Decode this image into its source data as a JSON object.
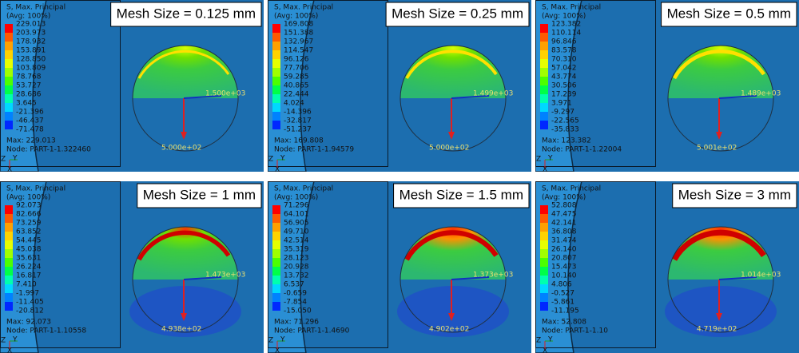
{
  "panels": [
    {
      "mesh_size": "Mesh Size = 0.125 mm",
      "legend_title": "S, Max. Principal",
      "legend_avg": "(Avg: 100%)",
      "legend_values": [
        "229.013",
        "203.973",
        "178.932",
        "153.891",
        "128.850",
        "103.809",
        "78.768",
        "53.727",
        "28.686",
        "3.645",
        "-21.396",
        "-46.437",
        "-71.478"
      ],
      "max": "Max: 229.013",
      "node": "Node: PART-1-1.322460",
      "right_load": "1.500e+03",
      "bottom_load": "5.000e+02"
    },
    {
      "mesh_size": "Mesh Size = 0.25 mm",
      "legend_title": "S, Max. Principal",
      "legend_avg": "(Avg: 100%)",
      "legend_values": [
        "169.808",
        "151.388",
        "132.967",
        "114.547",
        "96.126",
        "77.706",
        "59.285",
        "40.865",
        "22.444",
        "4.024",
        "-14.396",
        "-32.817",
        "-51.237"
      ],
      "max": "Max: 169.808",
      "node": "Node: PART-1-1.94579",
      "right_load": "1.499e+03",
      "bottom_load": "5.000e+02"
    },
    {
      "mesh_size": "Mesh Size = 0.5 mm",
      "legend_title": "S, Max. Principal",
      "legend_avg": "(Avg: 100%)",
      "legend_values": [
        "123.382",
        "110.114",
        "96.846",
        "83.578",
        "70.310",
        "57.042",
        "43.774",
        "30.506",
        "17.239",
        "3.971",
        "-9.297",
        "-22.565",
        "-35.833"
      ],
      "max": "Max: 123.382",
      "node": "Node: PART-1-1.22004",
      "right_load": "1.489e+03",
      "bottom_load": "5.001e+02"
    },
    {
      "mesh_size": "Mesh Size = 1 mm",
      "legend_title": "S, Max. Principal",
      "legend_avg": "(Avg: 100%)",
      "legend_values": [
        "92.073",
        "82.666",
        "73.259",
        "63.852",
        "54.445",
        "45.038",
        "35.631",
        "26.224",
        "16.817",
        "7.410",
        "-1.997",
        "-11.405",
        "-20.812"
      ],
      "max": "Max: 92.073",
      "node": "Node: PART-1-1.10558",
      "right_load": "1.473e+03",
      "bottom_load": "4.938e+02"
    },
    {
      "mesh_size": "Mesh Size = 1.5 mm",
      "legend_title": "S, Max. Principal",
      "legend_avg": "(Avg: 100%)",
      "legend_values": [
        "71.296",
        "64.101",
        "56.905",
        "49.710",
        "42.514",
        "35.319",
        "28.123",
        "20.928",
        "13.732",
        "6.537",
        "-0.659",
        "-7.854",
        "-15.050"
      ],
      "max": "Max: 71.296",
      "node": "Node: PART-1-1.4690",
      "right_load": "1.373e+03",
      "bottom_load": "4.902e+02"
    },
    {
      "mesh_size": "Mesh Size = 3 mm",
      "legend_title": "S, Max. Principal",
      "legend_avg": "(Avg: 100%)",
      "legend_values": [
        "52.808",
        "47.475",
        "42.141",
        "36.808",
        "31.474",
        "26.140",
        "20.807",
        "15.473",
        "10.140",
        "4.806",
        "-0.527",
        "-5.861",
        "-11.195"
      ],
      "max": "Max: 52.808",
      "node": "Node: PART-1-1.10",
      "right_load": "1.014e+03",
      "bottom_load": "4.719e+02"
    }
  ],
  "triad": [
    "Z",
    "Y",
    "X"
  ]
}
